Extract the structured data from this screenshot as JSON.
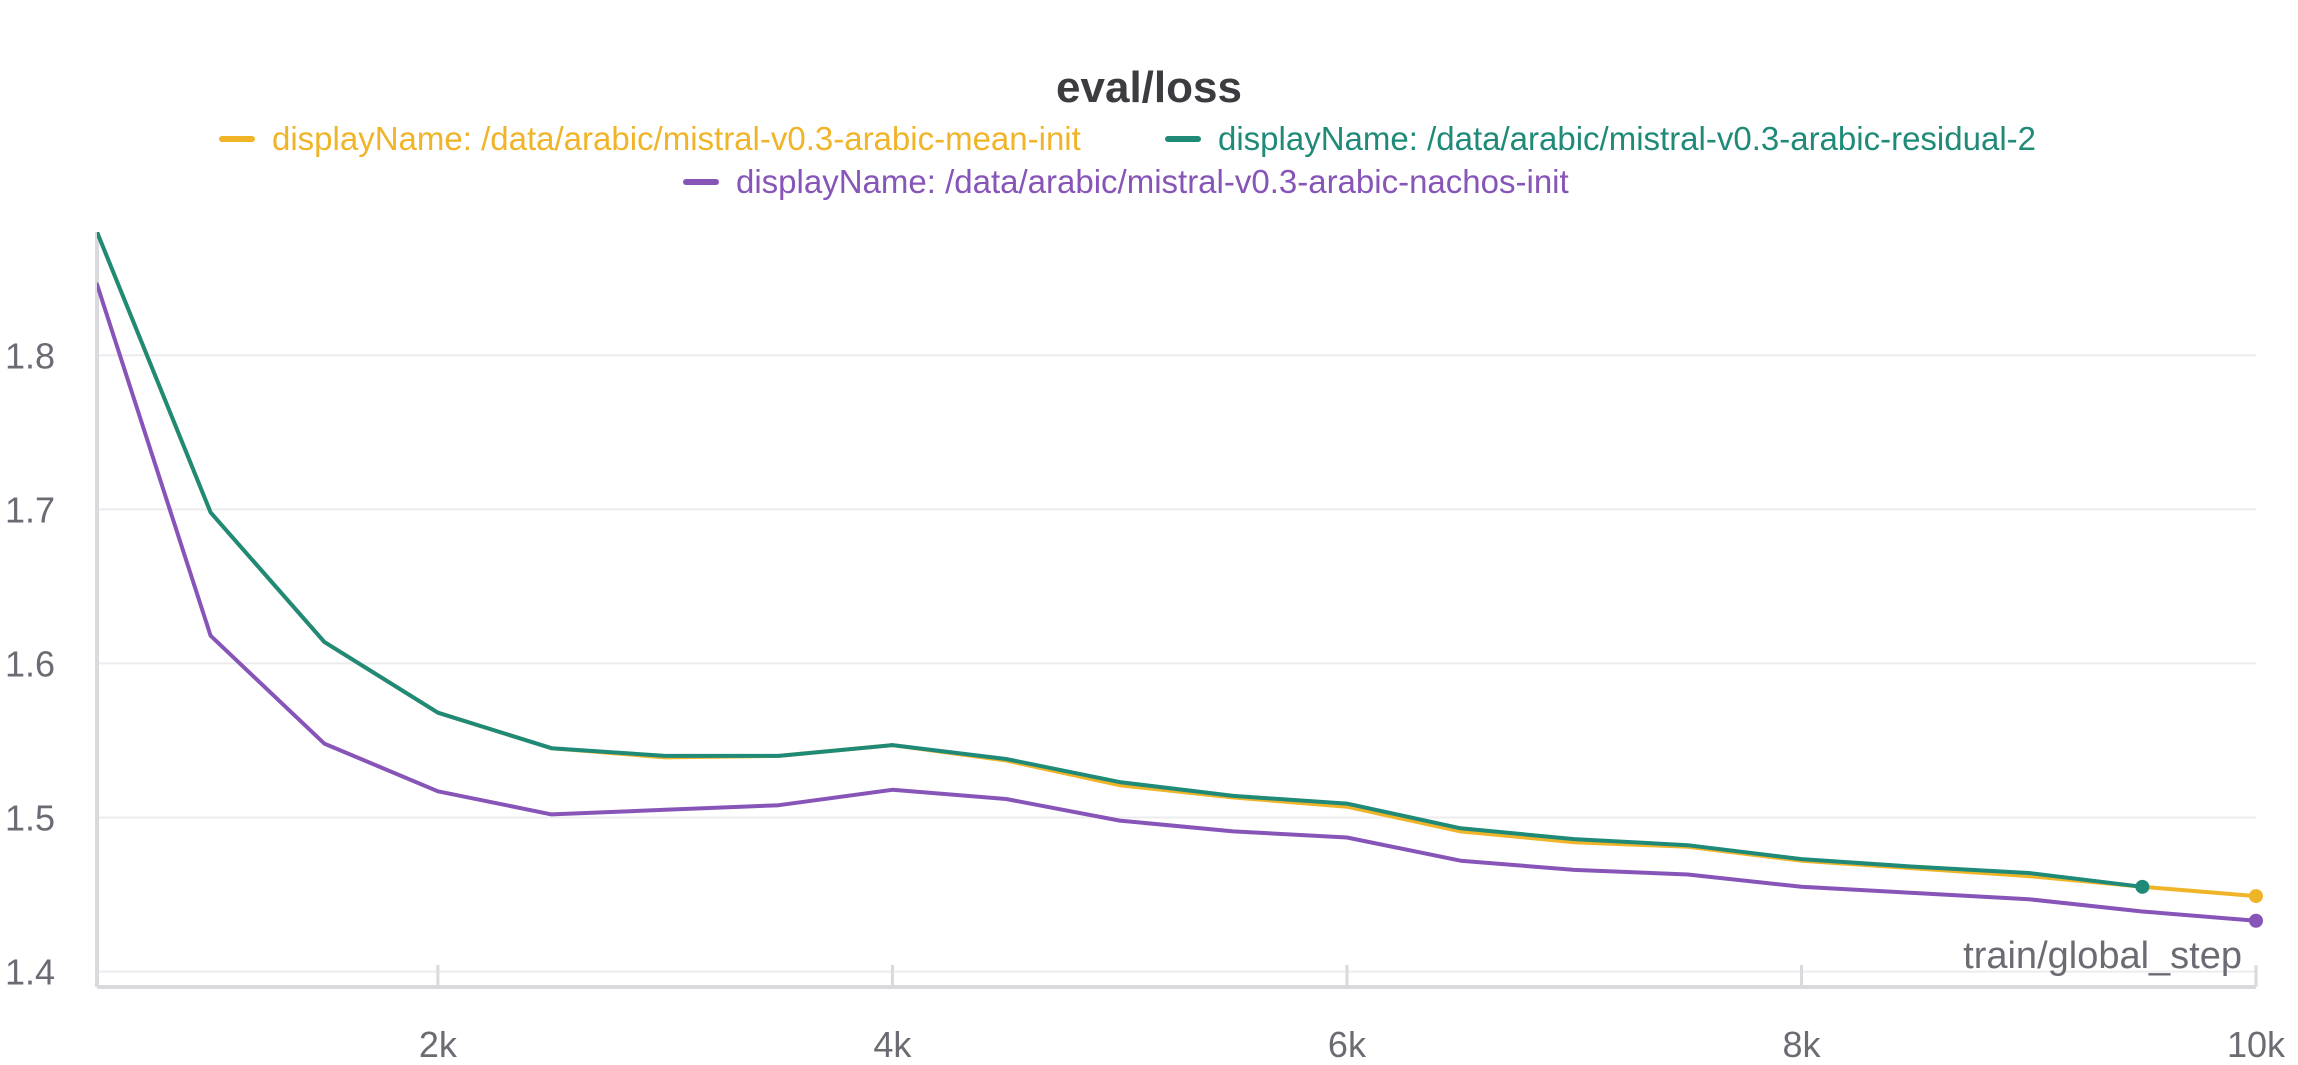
{
  "chart_data": {
    "type": "line",
    "title": "eval/loss",
    "xlabel": "train/global_step",
    "ylabel": "",
    "xlim": [
      500,
      10000
    ],
    "ylim": [
      1.39,
      1.88
    ],
    "x_ticks": [
      2000,
      4000,
      6000,
      8000,
      10000
    ],
    "x_tick_labels": [
      "2k",
      "4k",
      "6k",
      "8k",
      "10k"
    ],
    "y_ticks": [
      1.4,
      1.5,
      1.6,
      1.7,
      1.8
    ],
    "y_tick_labels": [
      "1.4",
      "1.5",
      "1.6",
      "1.7",
      "1.8"
    ],
    "grid": true,
    "legend_position": "top-center",
    "series": [
      {
        "name": "displayName: /data/arabic/mistral-v0.3-arabic-mean-init",
        "color": "#f0b429",
        "x": [
          500,
          1000,
          1500,
          2000,
          2500,
          3000,
          3500,
          4000,
          4500,
          5000,
          5500,
          6000,
          6500,
          7000,
          7500,
          8000,
          8500,
          9000,
          9500,
          10000
        ],
        "y": [
          1.88,
          1.698,
          1.614,
          1.568,
          1.545,
          1.539,
          1.54,
          1.547,
          1.537,
          1.521,
          1.513,
          1.507,
          1.491,
          1.484,
          1.481,
          1.472,
          1.467,
          1.462,
          1.455,
          1.449
        ]
      },
      {
        "name": "displayName: /data/arabic/mistral-v0.3-arabic-residual-2",
        "color": "#1f8a78",
        "x": [
          500,
          1000,
          1500,
          2000,
          2500,
          3000,
          3500,
          4000,
          4500,
          5000,
          5500,
          6000,
          6500,
          7000,
          7500,
          8000,
          8500,
          9000,
          9500
        ],
        "y": [
          1.88,
          1.698,
          1.614,
          1.568,
          1.545,
          1.54,
          1.54,
          1.547,
          1.538,
          1.523,
          1.514,
          1.509,
          1.493,
          1.486,
          1.482,
          1.473,
          1.468,
          1.464,
          1.455
        ]
      },
      {
        "name": "displayName: /data/arabic/mistral-v0.3-arabic-nachos-init",
        "color": "#8754b8",
        "x": [
          500,
          1000,
          1500,
          2000,
          2500,
          3000,
          3500,
          4000,
          4500,
          5000,
          5500,
          6000,
          6500,
          7000,
          7500,
          8000,
          8500,
          9000,
          9500,
          10000
        ],
        "y": [
          1.846,
          1.618,
          1.548,
          1.517,
          1.502,
          1.505,
          1.508,
          1.518,
          1.512,
          1.498,
          1.491,
          1.487,
          1.472,
          1.466,
          1.463,
          1.455,
          1.451,
          1.447,
          1.439,
          1.433
        ]
      }
    ]
  }
}
